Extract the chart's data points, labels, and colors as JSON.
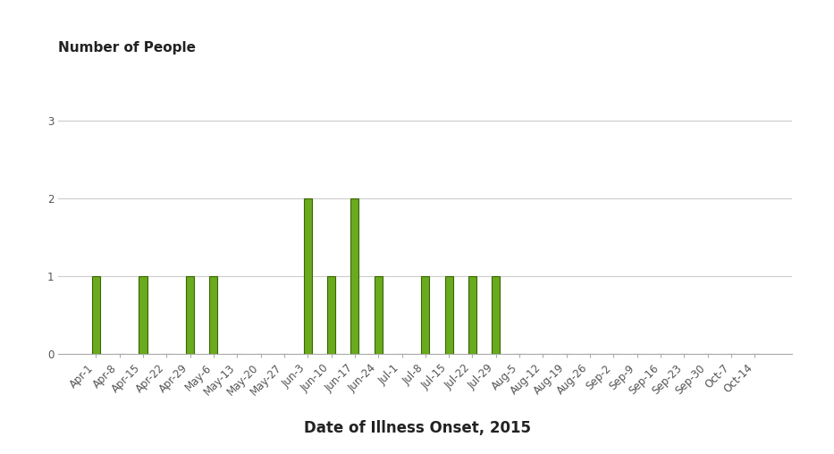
{
  "categories": [
    "Apr-1",
    "Apr-8",
    "Apr-15",
    "Apr-22",
    "Apr-29",
    "May-6",
    "May-13",
    "May-20",
    "May-27",
    "Jun-3",
    "Jun-10",
    "Jun-17",
    "Jun-24",
    "Jul-1",
    "Jul-8",
    "Jul-15",
    "Jul-22",
    "Jul-29",
    "Aug-5",
    "Aug-12",
    "Aug-19",
    "Aug-26",
    "Sep-2",
    "Sep-9",
    "Sep-16",
    "Sep-23",
    "Sep-30",
    "Oct-7",
    "Oct-14"
  ],
  "values": [
    1,
    0,
    1,
    0,
    1,
    1,
    0,
    0,
    0,
    2,
    1,
    2,
    1,
    0,
    1,
    1,
    1,
    1,
    0,
    0,
    0,
    0,
    0,
    0,
    0,
    0,
    0,
    0,
    0
  ],
  "bar_color": "#6aaa1e",
  "bar_edge_color": "#3a6600",
  "ylabel": "Number of People",
  "xlabel": "Date of Illness Onset, 2015",
  "ylim": [
    0,
    3.5
  ],
  "yticks": [
    0,
    1,
    2,
    3
  ],
  "background_color": "#ffffff",
  "grid_color": "#cccccc",
  "xlabel_fontsize": 12,
  "ylabel_fontsize": 11,
  "tick_fontsize": 8.5,
  "bar_width": 0.35
}
